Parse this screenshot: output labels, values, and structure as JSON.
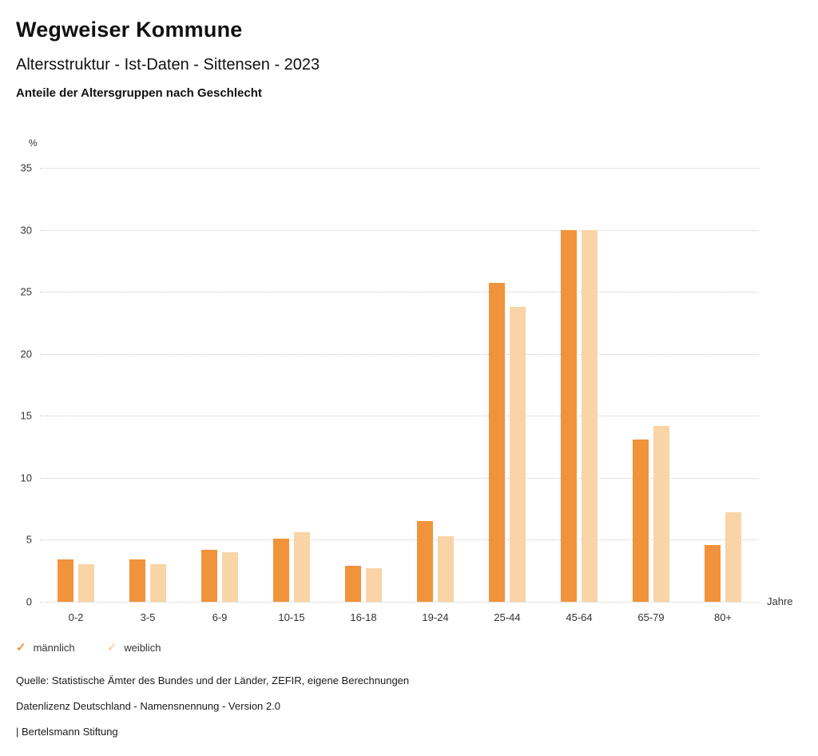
{
  "header": {
    "title": "Wegweiser Kommune",
    "subtitle": "Altersstruktur - Ist-Daten - Sittensen - 2023",
    "chart_heading": "Anteile der Altersgruppen nach Geschlecht"
  },
  "chart_data": {
    "type": "bar",
    "title": "Anteile der Altersgruppen nach Geschlecht",
    "unit_label": "%",
    "x_unit_label": "Jahre",
    "categories": [
      "0-2",
      "3-5",
      "6-9",
      "10-15",
      "16-18",
      "19-24",
      "25-44",
      "45-64",
      "65-79",
      "80+"
    ],
    "series": [
      {
        "name": "männlich",
        "color": "#F0933A",
        "values": [
          3.4,
          3.4,
          4.2,
          5.1,
          2.9,
          6.5,
          25.7,
          30.0,
          13.1,
          4.6
        ]
      },
      {
        "name": "weiblich",
        "color": "#F8D4A6",
        "values": [
          3.0,
          3.0,
          4.0,
          5.6,
          2.7,
          5.3,
          23.8,
          30.0,
          14.2,
          7.2
        ]
      }
    ],
    "ylim": [
      0,
      35
    ],
    "ytick_step": 5,
    "grid": true,
    "legend_position": "bottom"
  },
  "legend": {
    "items": [
      {
        "label": "männlich",
        "color": "#F0933A"
      },
      {
        "label": "weiblich",
        "color": "#F8D4A6"
      }
    ]
  },
  "footer": {
    "source": "Quelle: Statistische Ämter des Bundes und der Länder, ZEFIR, eigene Berechnungen",
    "license": "Datenlizenz Deutschland - Namensnennung - Version 2.0",
    "attribution": "| Bertelsmann Stiftung"
  }
}
